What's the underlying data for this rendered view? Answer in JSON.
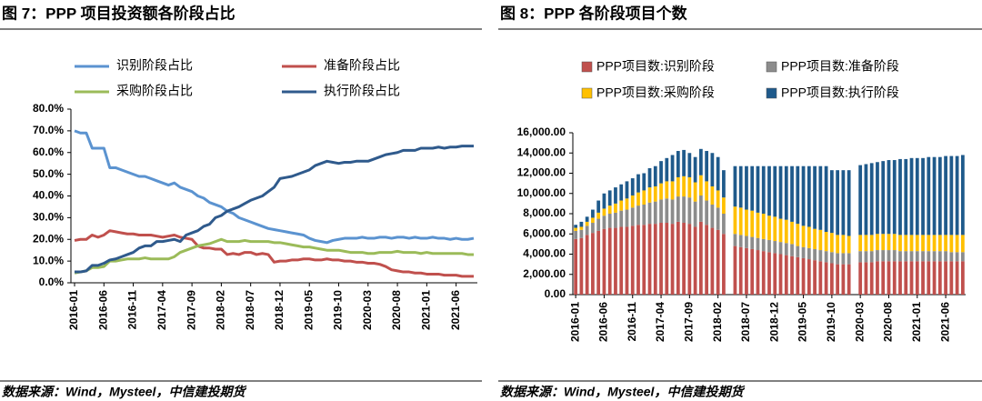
{
  "chart_data": [
    {
      "type": "line",
      "title": "图 7：PPP 项目投资额各阶段占比",
      "source": "数据来源：Wind，Mysteel，中信建投期货",
      "categories": [
        "2016-01",
        null,
        null,
        null,
        null,
        "2016-06",
        null,
        null,
        null,
        null,
        "2016-11",
        null,
        null,
        null,
        null,
        "2017-04",
        null,
        null,
        null,
        null,
        "2017-09",
        null,
        null,
        null,
        null,
        "2018-02",
        null,
        null,
        null,
        null,
        "2018-07",
        null,
        null,
        null,
        null,
        "2018-12",
        null,
        null,
        null,
        null,
        "2019-05",
        null,
        null,
        null,
        null,
        "2019-10",
        null,
        null,
        null,
        null,
        "2020-03",
        null,
        null,
        null,
        null,
        "2020-08",
        null,
        null,
        null,
        null,
        "2021-01",
        null,
        null,
        null,
        null,
        "2021-06",
        null,
        null,
        null
      ],
      "ylim": [
        0,
        80
      ],
      "yticks": [
        {
          "value": 0,
          "label": "0.0%"
        },
        {
          "value": 10,
          "label": "10.0%"
        },
        {
          "value": 20,
          "label": "20.0%"
        },
        {
          "value": 30,
          "label": "30.0%"
        },
        {
          "value": 40,
          "label": "40.0%"
        },
        {
          "value": 50,
          "label": "50.0%"
        },
        {
          "value": 60,
          "label": "60.0%"
        },
        {
          "value": 70,
          "label": "70.0%"
        },
        {
          "value": 80,
          "label": "80.0%"
        }
      ],
      "grid": false,
      "series": [
        {
          "name": "识别阶段占比",
          "color": "#5b93d0",
          "values": [
            70,
            69,
            69,
            62,
            62,
            62,
            53,
            53,
            52,
            51,
            50,
            49,
            49,
            48,
            47,
            46,
            45,
            46,
            44,
            43,
            42,
            40,
            39,
            37,
            36,
            35,
            33,
            32,
            30,
            29,
            28,
            27,
            26,
            25,
            24.5,
            24,
            23.5,
            23,
            22.5,
            22,
            20.5,
            19.5,
            19,
            18.5,
            19.5,
            20,
            20.5,
            20.5,
            20.5,
            21,
            20.5,
            20.5,
            21,
            21,
            20.5,
            21,
            21,
            20.5,
            21,
            20.5,
            20.5,
            21,
            20.5,
            20.5,
            20,
            20.5,
            20,
            20,
            20.5
          ]
        },
        {
          "name": "准备阶段占比",
          "color": "#c0504d",
          "values": [
            19.5,
            20,
            20,
            22,
            21,
            22,
            24,
            23.5,
            23,
            22.5,
            22.5,
            22,
            22,
            22,
            21.5,
            21,
            21.5,
            22,
            21,
            20.5,
            20,
            17,
            16,
            16,
            15.5,
            15.5,
            13,
            13.5,
            13,
            14,
            14,
            13,
            13.5,
            13,
            9.5,
            10,
            10,
            10.5,
            10.5,
            11,
            11,
            10.5,
            10.5,
            11,
            10.5,
            10.5,
            10,
            10,
            9.5,
            9.5,
            9,
            9,
            8.5,
            7.5,
            6,
            5.5,
            5,
            5,
            4.5,
            4.5,
            4,
            4,
            4,
            3.5,
            3.5,
            3.5,
            3,
            3,
            3
          ]
        },
        {
          "name": "采购阶段占比",
          "color": "#9bbb59",
          "values": [
            4.5,
            5,
            5.5,
            7,
            7,
            7.5,
            10,
            10,
            10.5,
            11,
            11,
            11,
            11.5,
            11,
            11,
            11,
            11,
            12,
            14,
            15,
            16,
            17,
            17.5,
            18,
            19,
            20,
            19,
            19,
            19,
            19.5,
            19,
            19,
            19,
            19,
            18.5,
            18.5,
            18,
            17.5,
            17,
            16.5,
            16.5,
            16,
            15.5,
            15,
            15,
            15,
            14.5,
            14,
            14,
            14,
            13.5,
            13.5,
            14,
            14,
            14,
            14.5,
            14,
            14,
            14,
            13.5,
            14,
            13.5,
            13.5,
            13.5,
            13.5,
            13.5,
            13.5,
            13,
            13
          ]
        },
        {
          "name": "执行阶段占比",
          "color": "#2f5a8c",
          "values": [
            5,
            5,
            5.5,
            8,
            8,
            9,
            10.5,
            11,
            12,
            13,
            14,
            16,
            17,
            17,
            19,
            19,
            19.5,
            20,
            19,
            22,
            23,
            24,
            26,
            27,
            30,
            31,
            33,
            34,
            35,
            36.5,
            38,
            39,
            40,
            42,
            44,
            48,
            48.5,
            49,
            50,
            51,
            52,
            54,
            55,
            56,
            55.5,
            55,
            55.5,
            55.5,
            56,
            56,
            56,
            57,
            58,
            59,
            59.5,
            60,
            61,
            61,
            61,
            62,
            62,
            62,
            62.5,
            62,
            62.5,
            62.5,
            63,
            63,
            63
          ]
        }
      ]
    },
    {
      "type": "bar",
      "stacked": true,
      "title": "图 8：PPP 各阶段项目个数",
      "source": "数据来源：Wind，Mysteel，中信建投期货",
      "categories": [
        "2016-01",
        null,
        null,
        null,
        null,
        "2016-06",
        null,
        null,
        null,
        null,
        "2016-11",
        null,
        null,
        null,
        null,
        "2017-04",
        null,
        null,
        null,
        null,
        "2017-09",
        null,
        null,
        null,
        null,
        "2018-02",
        null,
        null,
        null,
        null,
        "2018-07",
        null,
        null,
        null,
        null,
        "2018-12",
        null,
        null,
        null,
        null,
        "2019-05",
        null,
        null,
        null,
        null,
        "2019-10",
        null,
        null,
        null,
        null,
        "2020-03",
        null,
        null,
        null,
        null,
        "2020-08",
        null,
        null,
        null,
        null,
        "2021-01",
        null,
        null,
        null,
        null,
        "2021-06",
        null,
        null,
        null
      ],
      "ylim": [
        0,
        16000
      ],
      "yticks": [
        {
          "value": 0,
          "label": "0.00"
        },
        {
          "value": 2000,
          "label": "2,000.00"
        },
        {
          "value": 4000,
          "label": "4,000.00"
        },
        {
          "value": 6000,
          "label": "6,000.00"
        },
        {
          "value": 8000,
          "label": "8,000.00"
        },
        {
          "value": 10000,
          "label": "10,000.00"
        },
        {
          "value": 12000,
          "label": "12,000.00"
        },
        {
          "value": 14000,
          "label": "14,000.00"
        },
        {
          "value": 16000,
          "label": "16,000.00"
        }
      ],
      "grid": false,
      "series": [
        {
          "name": "PPP项目数:识别阶段",
          "color": "#c0504d",
          "values": [
            5500,
            5600,
            5900,
            6100,
            6300,
            6500,
            6600,
            6600,
            6700,
            6700,
            6800,
            6900,
            6900,
            7000,
            7000,
            7100,
            7100,
            7000,
            7200,
            7100,
            7000,
            6700,
            7200,
            6900,
            6600,
            6400,
            6000,
            null,
            4800,
            4700,
            4600,
            4500,
            4400,
            4300,
            4200,
            4100,
            4000,
            3900,
            3800,
            3700,
            3600,
            3500,
            3400,
            3300,
            3200,
            3100,
            3000,
            3000,
            3000,
            null,
            3200,
            3200,
            3200,
            3300,
            3300,
            3300,
            3300,
            3300,
            3300,
            3300,
            3300,
            3300,
            3300,
            3300,
            3300,
            3300,
            3300,
            3300,
            3300
          ]
        },
        {
          "name": "PPP项目数:准备阶段",
          "color": "#8c8c8c",
          "values": [
            800,
            800,
            900,
            1000,
            1200,
            1300,
            1400,
            1500,
            1600,
            1700,
            1800,
            1900,
            2000,
            2100,
            2200,
            2300,
            2400,
            2400,
            2500,
            2600,
            2600,
            2500,
            2600,
            2400,
            2300,
            2200,
            2000,
            null,
            1200,
            1200,
            1200,
            1200,
            1200,
            1200,
            1200,
            1200,
            1200,
            1200,
            1200,
            1100,
            1100,
            1100,
            1100,
            1100,
            1100,
            1100,
            1100,
            1100,
            1100,
            null,
            1100,
            1100,
            1100,
            1100,
            1100,
            1100,
            1100,
            1000,
            1000,
            1000,
            1000,
            1000,
            1000,
            1000,
            1000,
            1000,
            900,
            900,
            900
          ]
        },
        {
          "name": "PPP项目数:采购阶段",
          "color": "#ffc000",
          "values": [
            300,
            300,
            400,
            500,
            600,
            700,
            800,
            900,
            1000,
            1100,
            1200,
            1300,
            1400,
            1500,
            1500,
            1600,
            1700,
            1800,
            1900,
            2000,
            2000,
            1900,
            2000,
            1900,
            1800,
            1700,
            1600,
            null,
            2700,
            2700,
            2600,
            2600,
            2500,
            2500,
            2400,
            2400,
            2300,
            2300,
            2200,
            2200,
            2100,
            2100,
            2000,
            2000,
            1900,
            1900,
            1800,
            1800,
            1700,
            null,
            1600,
            1600,
            1600,
            1600,
            1600,
            1600,
            1600,
            1600,
            1600,
            1600,
            1600,
            1600,
            1600,
            1600,
            1600,
            1600,
            1700,
            1700,
            1700
          ]
        },
        {
          "name": "PPP项目数:执行阶段",
          "color": "#1f5a8b",
          "values": [
            300,
            500,
            500,
            800,
            1200,
            1500,
            1500,
            1600,
            1600,
            1700,
            1700,
            1800,
            1700,
            1900,
            2000,
            2200,
            2300,
            2600,
            2600,
            2600,
            2400,
            2500,
            2600,
            3000,
            3300,
            3300,
            2700,
            null,
            4000,
            4100,
            4300,
            4400,
            4600,
            4700,
            4900,
            5000,
            5200,
            5300,
            5500,
            5700,
            5900,
            6000,
            6200,
            6300,
            6500,
            6200,
            6400,
            6400,
            6500,
            null,
            6900,
            7000,
            7100,
            7100,
            7200,
            7300,
            7300,
            7500,
            7500,
            7600,
            7600,
            7600,
            7700,
            7700,
            7700,
            7800,
            7800,
            7800,
            7900
          ]
        }
      ]
    }
  ]
}
